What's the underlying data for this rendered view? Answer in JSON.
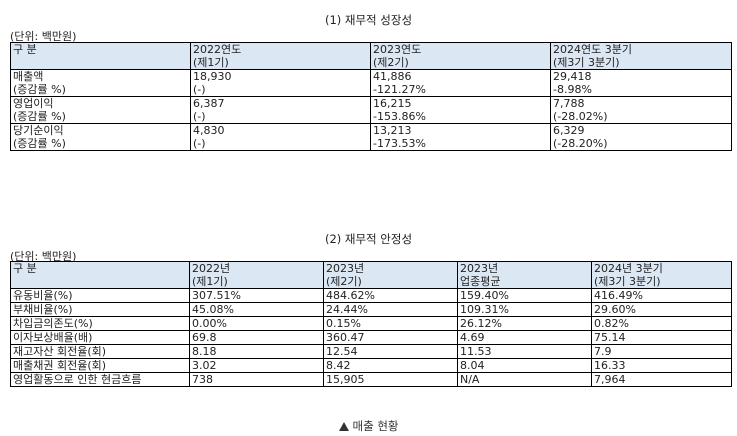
{
  "section1": {
    "title": "(1) 재무적 성장성",
    "unit": "(단위: 백만원)",
    "header": [
      [
        "구   분",
        ""
      ],
      [
        "2022연도",
        "(제1기)"
      ],
      [
        "2023연도",
        "(제2기)"
      ],
      [
        "2024연도 3분기",
        "(제3기 3분기)"
      ]
    ],
    "rows": [
      [
        [
          "매출액",
          "(증감률 %)"
        ],
        [
          "18,930",
          "(-)"
        ],
        [
          "41,886",
          "-121.27%"
        ],
        [
          "29,418",
          "-8.98%"
        ]
      ],
      [
        [
          "영업이익",
          "(증감률 %)"
        ],
        [
          "6,387",
          "(-)"
        ],
        [
          "16,215",
          "-153.86%"
        ],
        [
          "7,788",
          "(-28.02%)"
        ]
      ],
      [
        [
          "당기순이익",
          "(증감률 %)"
        ],
        [
          "4,830",
          "(-)"
        ],
        [
          "13,213",
          "-173.53%"
        ],
        [
          "6,329",
          "(-28.20%)"
        ]
      ]
    ]
  },
  "section2": {
    "title": "(2) 재무적 안정성",
    "unit": "(단위: 백만원)",
    "header": [
      [
        "구      분",
        ""
      ],
      [
        "2022년",
        "(제1기)"
      ],
      [
        "2023년",
        "(제2기)"
      ],
      [
        "2023년",
        "업종평균"
      ],
      [
        "2024년 3분기",
        "(제3기 3분기)"
      ]
    ],
    "rows": [
      [
        "유동비율(%)",
        "307.51%",
        "484.62%",
        "159.40%",
        "416.49%"
      ],
      [
        "부채비율(%)",
        "45.08%",
        "24.44%",
        "109.31%",
        "29.60%"
      ],
      [
        "차입금의존도(%)",
        "0.00%",
        "0.15%",
        "26.12%",
        "0.82%"
      ],
      [
        "이자보상배율(배)",
        "69.8",
        "360.47",
        "4.69",
        "75.14"
      ],
      [
        "재고자산 회전율(회)",
        "8.18",
        "12.54",
        "11.53",
        "7.9"
      ],
      [
        "매출채권 회전율(회)",
        "3.02",
        "8.42",
        "8.04",
        "16.33"
      ],
      [
        "영업활동으로 인한 현금흐름",
        "738",
        "15,905",
        "N/A",
        "7,964"
      ]
    ]
  },
  "caption": "매출 현황",
  "colors": {
    "header_bg": "#dce7f4",
    "border": "#000000"
  }
}
